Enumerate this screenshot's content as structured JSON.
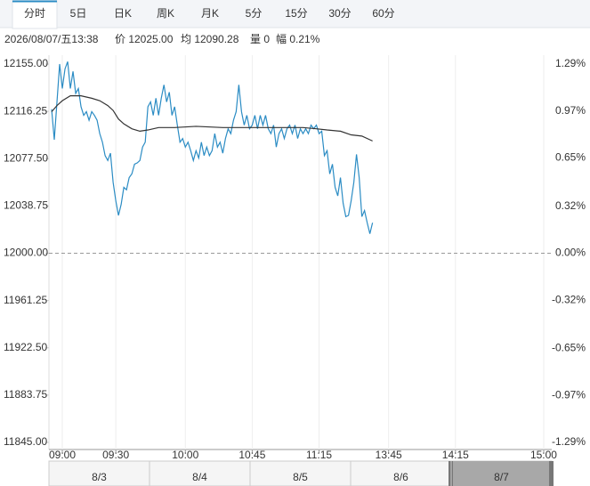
{
  "tabs": [
    "分时",
    "5日",
    "日K",
    "周K",
    "月K",
    "5分",
    "15分",
    "30分",
    "60分"
  ],
  "info": {
    "datetime": "2026/08/07/五13:38",
    "items": [
      "价 12025.00",
      "均 12090.28",
      "量 0",
      "幅 0.21%"
    ]
  },
  "chart_data": {
    "type": "line",
    "series": [
      {
        "color": "#2b8cc4",
        "x": [
          0,
          1,
          2,
          3,
          4,
          5,
          6,
          7,
          8,
          9,
          10,
          11,
          12,
          13,
          14,
          15,
          16,
          17,
          18,
          19,
          20,
          21,
          22,
          23,
          24,
          25,
          26,
          27,
          28,
          29,
          30,
          31,
          32,
          33,
          34,
          35,
          36,
          37,
          38,
          39,
          40,
          41,
          42,
          43,
          44,
          45,
          46,
          47,
          48,
          49,
          50,
          51,
          52,
          53,
          54,
          55,
          56,
          57,
          58,
          59,
          60,
          61,
          62,
          63,
          64,
          65,
          66,
          67,
          68,
          69,
          70,
          71,
          72,
          73,
          74,
          75,
          76,
          77,
          78,
          79,
          80,
          81,
          82,
          83,
          84,
          85,
          86,
          87,
          88,
          89,
          90,
          91,
          92,
          93,
          94,
          95,
          96,
          97,
          98,
          99,
          100,
          101,
          102,
          103,
          104,
          105,
          106,
          107,
          108,
          109,
          110,
          111,
          112,
          113,
          114,
          115,
          116,
          117,
          118,
          119,
          120
        ],
        "values": [
          12118,
          12093,
          12124,
          12155,
          12135,
          12151,
          12157,
          12135,
          12149,
          12131,
          12135,
          12120,
          12113,
          12116,
          12109,
          12116,
          12113,
          12109,
          12098,
          12091,
          12080,
          12076,
          12082,
          12058,
          12043,
          12031,
          12040,
          12054,
          12052,
          12062,
          12065,
          12073,
          12074,
          12076,
          12087,
          12091,
          12120,
          12124,
          12113,
          12127,
          12113,
          12127,
          12138,
          12124,
          12132,
          12113,
          12120,
          12105,
          12091,
          12094,
          12087,
          12091,
          12084,
          12076,
          12084,
          12078,
          12091,
          12080,
          12087,
          12080,
          12084,
          12098,
          12087,
          12091,
          12082,
          12094,
          12102,
          12098,
          12109,
          12116,
          12138,
          12116,
          12105,
          12113,
          12102,
          12105,
          12113,
          12102,
          12113,
          12105,
          12113,
          12102,
          12098,
          12105,
          12087,
          12098,
          12102,
          12094,
          12102,
          12105,
          12098,
          12105,
          12094,
          12102,
          12098,
          12102,
          12098,
          12105,
          12102,
          12105,
          12098,
          12100,
          12080,
          12084,
          12065,
          12073,
          12054,
          12047,
          12062,
          12041,
          12030,
          12031,
          12043,
          12058,
          12081,
          12062,
          12030,
          12035,
          12025,
          12016,
          12025
        ]
      },
      {
        "color": "#333333",
        "x": [
          0,
          2,
          4,
          7,
          11,
          15,
          18,
          21,
          23,
          25,
          27,
          30,
          33,
          36,
          40,
          46,
          54,
          64,
          74,
          84,
          94,
          99,
          103,
          108,
          112,
          116,
          120
        ],
        "values": [
          12116,
          12121,
          12125,
          12129,
          12129,
          12127,
          12125,
          12121,
          12117,
          12110,
          12106,
          12102,
          12100,
          12101,
          12103,
          12103,
          12104,
          12103,
          12103,
          12103,
          12103,
          12102,
          12101,
          12100,
          12097,
          12096,
          12092
        ]
      }
    ],
    "xlim": [
      -1,
      187
    ],
    "xticks": [
      {
        "value": 4,
        "label": "09:00"
      },
      {
        "value": 24,
        "label": "09:30"
      },
      {
        "value": 50,
        "label": "10:00"
      },
      {
        "value": 75,
        "label": "10:45"
      },
      {
        "value": 100,
        "label": "11:15"
      },
      {
        "value": 126,
        "label": "13:45"
      },
      {
        "value": 151,
        "label": "14:15"
      },
      {
        "value": 184,
        "label": "15:00"
      }
    ],
    "ylim": [
      11845,
      12155
    ],
    "yticks": [
      {
        "value": 12155,
        "label": "12155.00"
      },
      {
        "value": 12116.25,
        "label": "12116.25"
      },
      {
        "value": 12077.5,
        "label": "12077.50"
      },
      {
        "value": 12038.75,
        "label": "12038.75"
      },
      {
        "value": 12000,
        "label": "12000.00"
      },
      {
        "value": 11961.25,
        "label": "11961.25"
      },
      {
        "value": 11922.5,
        "label": "11922.50"
      },
      {
        "value": 11883.75,
        "label": "11883.75"
      },
      {
        "value": 11845,
        "label": "11845.00"
      }
    ],
    "y2lim": [
      -1.29,
      1.29
    ],
    "y2ticks": [
      {
        "value": 1.29,
        "label": "1.29%"
      },
      {
        "value": 0.97,
        "label": "0.97%"
      },
      {
        "value": 0.65,
        "label": "0.65%"
      },
      {
        "value": 0.32,
        "label": "0.32%"
      },
      {
        "value": 0,
        "label": "0.00%"
      },
      {
        "value": -0.32,
        "label": "-0.32%"
      },
      {
        "value": -0.65,
        "label": "-0.65%"
      },
      {
        "value": -0.97,
        "label": "-0.97%"
      },
      {
        "value": -1.29,
        "label": "-1.29%"
      }
    ],
    "reference_line": 12000,
    "up_color": "#e00000",
    "down_color": "#0a9a0a",
    "grid": true
  },
  "navigator": {
    "dates": [
      "8/3",
      "8/4",
      "8/5",
      "8/6",
      "8/7"
    ]
  }
}
